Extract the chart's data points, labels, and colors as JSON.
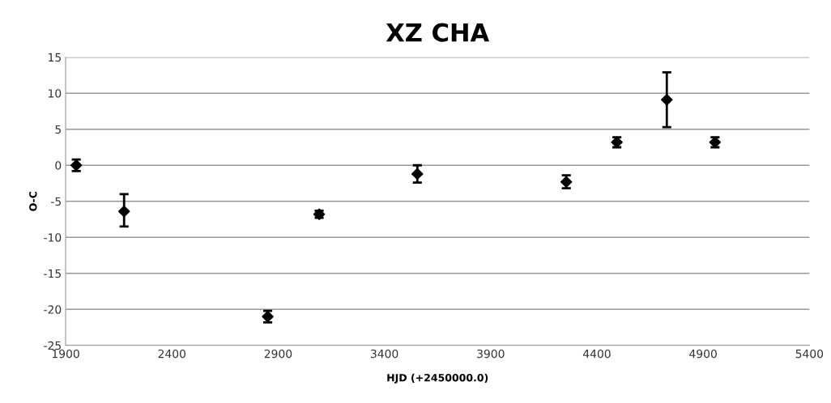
{
  "chart_data": {
    "type": "scatter",
    "title": "XZ CHA",
    "xlabel": "HJD (+2450000.0)",
    "ylabel": "O-C",
    "x": [
      1950,
      2175,
      2851,
      3093,
      3555,
      4256,
      4494,
      4729,
      4956
    ],
    "series": [
      {
        "color": "#000000",
        "values": [
          0,
          -6.4,
          -21,
          -6.8,
          -1.2,
          -2.3,
          3.2,
          9.1,
          3.2
        ],
        "errors": [
          0.8,
          [
            -8.5,
            -4.0
          ],
          0.8,
          0.5,
          1.2,
          0.9,
          0.7,
          3.8,
          0.7
        ]
      }
    ],
    "marker": "diamond",
    "xlim": [
      1900,
      5400
    ],
    "xticks": [
      1900,
      2400,
      2900,
      3400,
      3900,
      4400,
      4900,
      5400
    ],
    "ylim": [
      -25,
      15
    ],
    "yticks": [
      -25,
      -20,
      -15,
      -10,
      -5,
      0,
      5,
      10,
      15
    ],
    "grid": "y"
  }
}
